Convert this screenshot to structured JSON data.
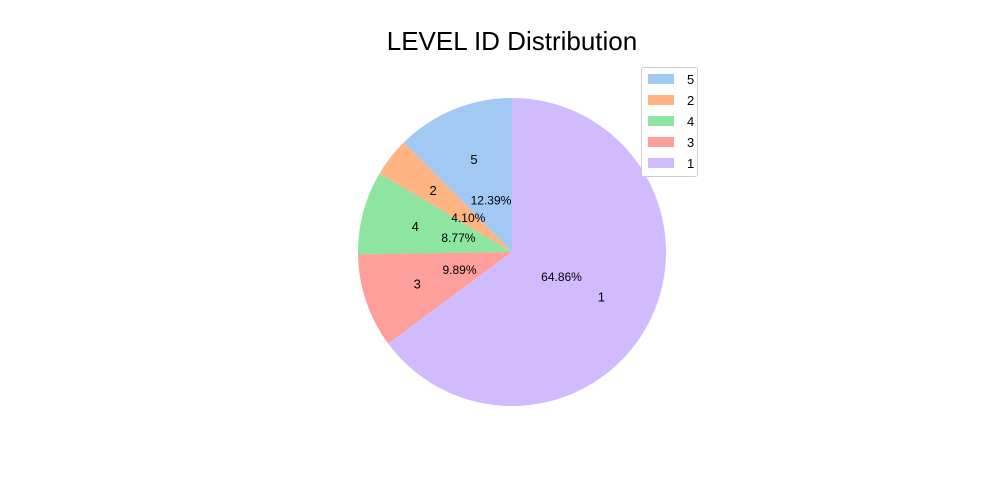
{
  "chart_data": {
    "type": "pie",
    "title": "LEVEL ID Distribution",
    "slices": [
      {
        "label": "5",
        "value": 12.39,
        "pct_label": "12.39%",
        "color": "#a1c9f4"
      },
      {
        "label": "2",
        "value": 4.1,
        "pct_label": "4.10%",
        "color": "#ffb482"
      },
      {
        "label": "4",
        "value": 8.77,
        "pct_label": "8.77%",
        "color": "#8de5a1"
      },
      {
        "label": "3",
        "value": 9.89,
        "pct_label": "9.89%",
        "color": "#ff9f9b"
      },
      {
        "label": "1",
        "value": 64.86,
        "pct_label": "64.86%",
        "color": "#d0bbff"
      }
    ],
    "start": "top",
    "direction": "counterclockwise",
    "legend": {
      "position": "top-right",
      "entries": [
        "5",
        "2",
        "4",
        "3",
        "1"
      ]
    }
  }
}
